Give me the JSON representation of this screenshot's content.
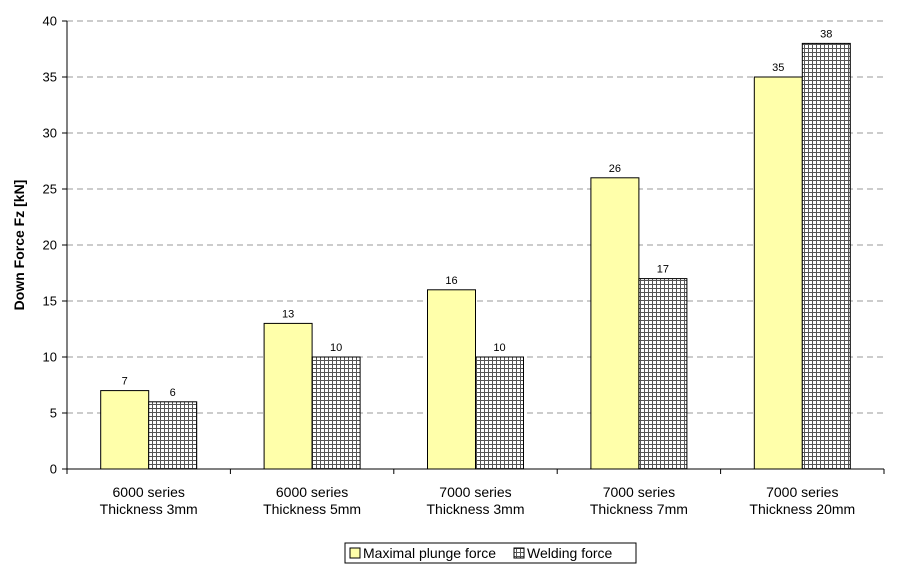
{
  "chart_data": {
    "type": "bar",
    "categories": [
      [
        "6000 series",
        "Thickness 3mm"
      ],
      [
        "6000 series",
        "Thickness 5mm"
      ],
      [
        "7000 series",
        "Thickness 3mm"
      ],
      [
        "7000 series",
        "Thickness 7mm"
      ],
      [
        "7000 series",
        "Thickness 20mm"
      ]
    ],
    "series": [
      {
        "name": "Maximal plunge force",
        "values": [
          7,
          13,
          16,
          26,
          35
        ],
        "color": "#ffffaa",
        "pattern": "solid"
      },
      {
        "name": "Welding force",
        "values": [
          6,
          10,
          10,
          17,
          38
        ],
        "color": "#ffffff",
        "pattern": "grid"
      }
    ],
    "title": "",
    "xlabel": "",
    "ylabel": "Down Force Fz [kN]",
    "ylim": [
      0,
      40
    ],
    "yticks": [
      0,
      5,
      10,
      15,
      20,
      25,
      30,
      35,
      40
    ],
    "grid": "horizontal dashed",
    "legend_position": "bottom-center"
  }
}
